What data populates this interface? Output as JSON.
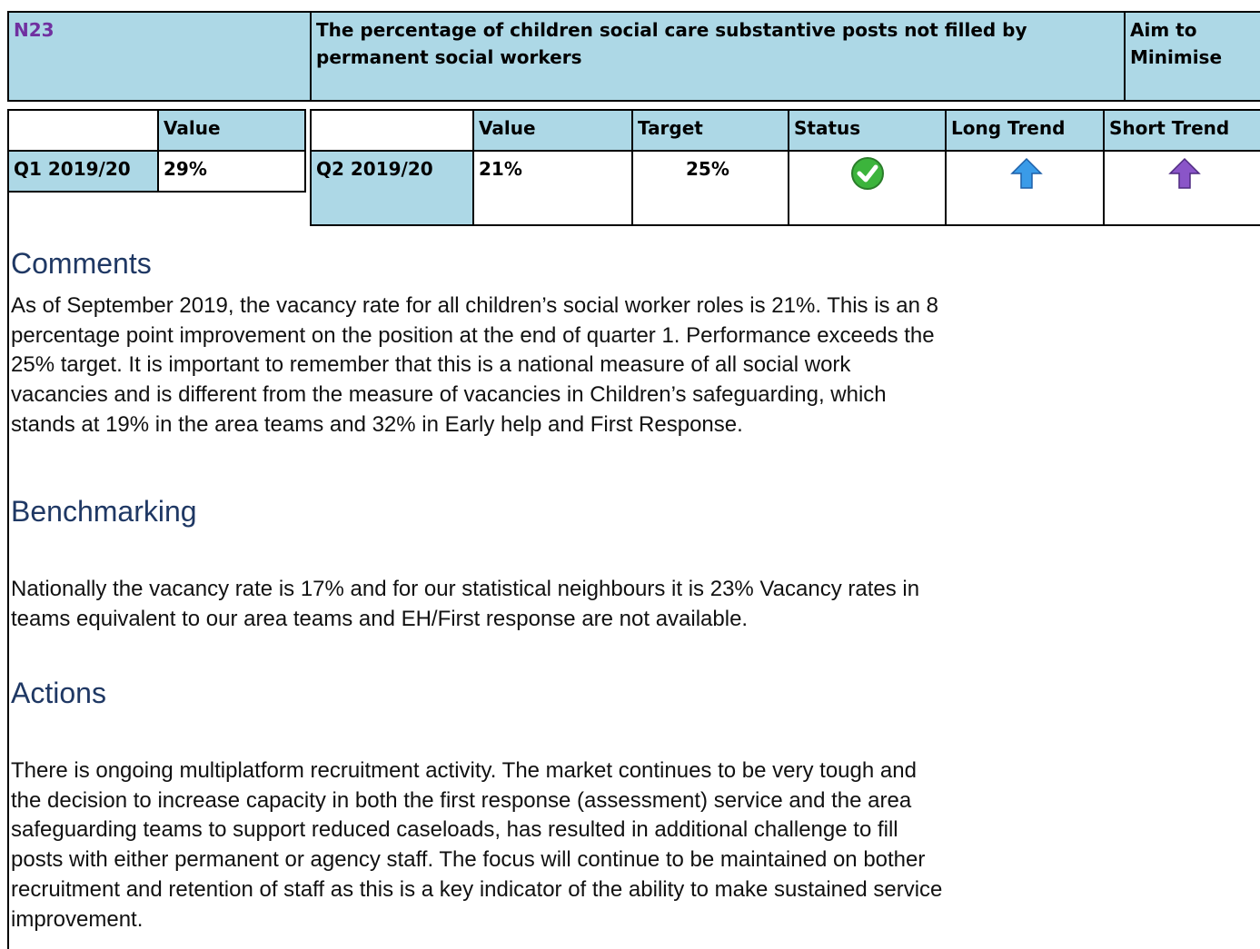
{
  "header": {
    "code": "N23",
    "title": "The percentage of children social care substantive posts not filled by permanent social workers",
    "aim": "Aim to Minimise"
  },
  "previous": {
    "value_header": "Value",
    "period": "Q1 2019/20",
    "value": "29%"
  },
  "current": {
    "headers": [
      "Value",
      "Target",
      "Status",
      "Long Trend",
      "Short Trend"
    ],
    "period": "Q2 2019/20",
    "value": "21%",
    "target": "25%"
  },
  "sections": [
    {
      "heading": "Comments",
      "lines": [
        "As of September 2019, the vacancy rate for all children’s social worker roles is 21%. This is an 8",
        "percentage point improvement on the position at the end of quarter 1. Performance exceeds the",
        "25% target. It is important to remember that this is a national measure of all social work",
        "vacancies and is different from the measure of vacancies in Children’s safeguarding, which",
        "stands at 19% in the area teams and 32% in Early help and First Response."
      ]
    },
    {
      "heading": "Benchmarking",
      "lines": [
        "Nationally the vacancy rate is 17% and for our statistical neighbours it is 23% Vacancy rates in",
        "teams equivalent to our area teams and EH/First response are not available."
      ]
    },
    {
      "heading": "Actions",
      "lines": [
        "There is ongoing multiplatform recruitment activity. The market continues to be very tough and",
        "the decision to increase capacity in both the first response (assessment) service and the area",
        "safeguarding teams to support reduced caseloads, has resulted in additional challenge to fill",
        "posts with either permanent or agency staff. The focus will continue to be maintained on bother",
        "recruitment and retention of staff as this is a key indicator of the ability to make sustained service",
        "improvement."
      ]
    }
  ]
}
